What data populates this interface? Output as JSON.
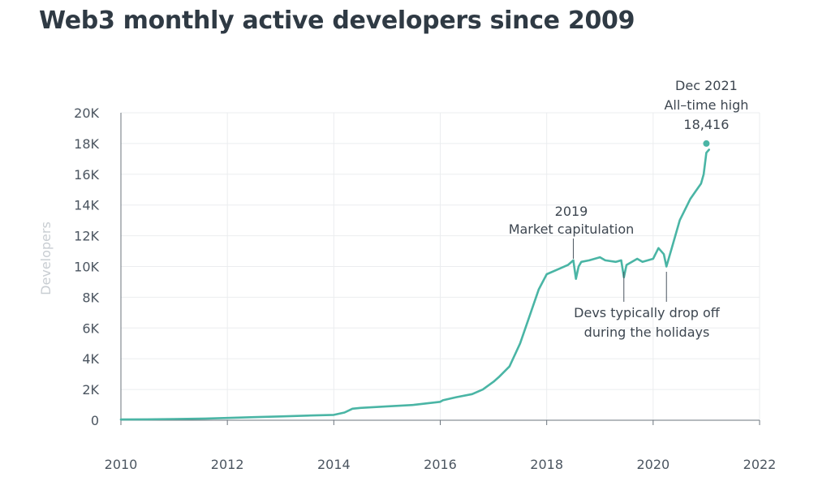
{
  "chart_data": {
    "type": "line",
    "title": "Web3 monthly active developers since 2009",
    "xlabel": "",
    "ylabel": "Developers",
    "xlim": [
      2010,
      2022
    ],
    "ylim": [
      0,
      20000
    ],
    "x_ticks": [
      "2010",
      "2012",
      "2014",
      "2016",
      "2018",
      "2020",
      "2022"
    ],
    "y_ticks": [
      "0",
      "2K",
      "4K",
      "6K",
      "8K",
      "10K",
      "12K",
      "14K",
      "16K",
      "18K",
      "20K"
    ],
    "grid": true,
    "line_color": "#4ab5a5",
    "series": [
      {
        "x": [
          2010.0,
          2010.5,
          2011.0,
          2011.5,
          2012.0,
          2012.5,
          2013.0,
          2013.5,
          2014.0,
          2014.2,
          2014.35,
          2014.5,
          2015.0,
          2015.5,
          2016.0,
          2016.05,
          2016.3,
          2016.6,
          2016.8,
          2017.0,
          2017.1,
          2017.3,
          2017.5,
          2017.7,
          2017.85,
          2018.0,
          2018.2,
          2018.4,
          2018.5,
          2018.55,
          2018.6,
          2018.65,
          2018.8,
          2019.0,
          2019.1,
          2019.3,
          2019.4,
          2019.45,
          2019.5,
          2019.7,
          2019.8,
          2020.0,
          2020.1,
          2020.2,
          2020.25,
          2020.35,
          2020.5,
          2020.7,
          2020.8,
          2020.9,
          2020.95,
          2021.0,
          2021.05
        ],
        "y": [
          50,
          60,
          80,
          100,
          150,
          200,
          250,
          300,
          350,
          500,
          750,
          800,
          900,
          1000,
          1200,
          1300,
          1500,
          1700,
          2000,
          2500,
          2800,
          3500,
          5000,
          7000,
          8500,
          9500,
          9800,
          10100,
          10400,
          9200,
          10000,
          10300,
          10400,
          10600,
          10400,
          10300,
          10400,
          9300,
          10100,
          10500,
          10300,
          10500,
          11200,
          10800,
          10000,
          11200,
          13000,
          14400,
          14900,
          15400,
          16000,
          17400,
          17600
        ]
      }
    ],
    "highlight_point": {
      "x": 2021.0,
      "y": 18000
    },
    "annotations": [
      {
        "lines": [
          "2019",
          "Market capitulation"
        ],
        "x": 2018.5,
        "y": 10400
      },
      {
        "lines": [
          "Dec 2021",
          "All–time high",
          "18,416"
        ],
        "x": 2021.0,
        "y": 18000
      },
      {
        "lines": [
          "Devs typically drop off",
          "during the holidays"
        ],
        "targets": [
          2019.45,
          2020.25
        ]
      }
    ]
  }
}
